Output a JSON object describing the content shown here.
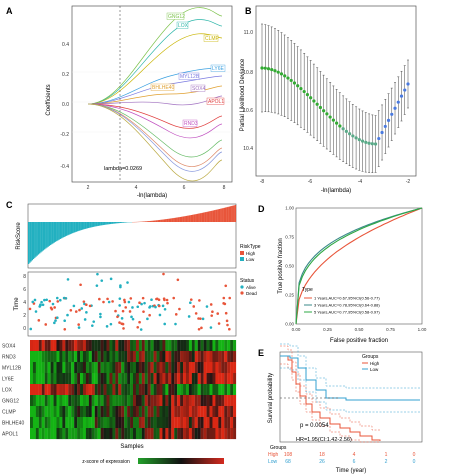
{
  "panels": {
    "A": {
      "letter": "A",
      "ylabel": "Coefficients",
      "xlabel": "-ln(lambda)",
      "annotation": "lambda=0.0269",
      "xticks": [
        "2",
        "4",
        "6",
        "8"
      ],
      "yticks": [
        "0.4",
        "0.2",
        "0.0",
        "-0.2",
        "-0.4"
      ],
      "genes": [
        {
          "name": "GNG12",
          "color": "#7cc24a"
        },
        {
          "name": "LOX",
          "color": "#2bb5a8"
        },
        {
          "name": "CLMP",
          "color": "#c8b400"
        },
        {
          "name": "LY6E",
          "color": "#3aa0e0"
        },
        {
          "name": "MYL12B",
          "color": "#7a7ae0"
        },
        {
          "name": "BHLHE40",
          "color": "#e0a030"
        },
        {
          "name": "SOX4",
          "color": "#a070c0"
        },
        {
          "name": "APOL1",
          "color": "#e04040"
        },
        {
          "name": "RND3",
          "color": "#c050c0"
        }
      ]
    },
    "B": {
      "letter": "B",
      "ylabel": "Partial Likelihood Deviance",
      "xlabel": "-ln(lambda)",
      "xticks": [
        "-8",
        "-6",
        "-4",
        "-2"
      ],
      "yticks": [
        "11.0",
        "10.8",
        "10.6",
        "10.4"
      ]
    },
    "C": {
      "letter": "C",
      "risk_ylabel": "RiskScore",
      "time_ylabel": "Time",
      "time_yticks": [
        "8",
        "6",
        "4",
        "2",
        "0"
      ],
      "risk_legend_title": "RiskType",
      "risk_legend": [
        {
          "label": "High",
          "color": "#e8553a"
        },
        {
          "label": "Low",
          "color": "#22b0c0"
        }
      ],
      "status_legend_title": "Status",
      "status_legend": [
        {
          "label": "Alive",
          "color": "#22b0c0"
        },
        {
          "label": "Dead",
          "color": "#e8553a"
        }
      ],
      "heatmap_genes": [
        "SOX4",
        "RND3",
        "MYL12B",
        "LY6E",
        "LOX",
        "GNG12",
        "CLMP",
        "BHLHE40",
        "APOL1"
      ],
      "samples_label": "Samples",
      "colorbar_label": "z-score of expression"
    },
    "D": {
      "letter": "D",
      "ylabel": "True positive fraction",
      "xlabel": "False positive fraction",
      "ticks": [
        "0.00",
        "0.25",
        "0.50",
        "0.75",
        "1.00"
      ],
      "legend_title": "Type",
      "legend": [
        {
          "label": "1 Years,AUC=0.67,95%CI(0.56-0.77)",
          "color": "#e8553a"
        },
        {
          "label": "3 Years,AUC=0.78,95%CI(0.64-0.88)",
          "color": "#3a8a8a"
        },
        {
          "label": "5 Years,AUC=0.77,95%CI(0.58-0.97)",
          "color": "#2ea844"
        }
      ]
    },
    "E": {
      "letter": "E",
      "ylabel": "Survival probability",
      "xlabel": "Time (year)",
      "legend_title": "Groups",
      "legend": [
        {
          "label": "High",
          "color": "#e8553a"
        },
        {
          "label": "Low",
          "color": "#33a0d0"
        }
      ],
      "pvalue": "p = 0.0054",
      "hr": "HR=1.95(CI:1.42-2.56)",
      "risk_table_label": "Groups",
      "risk_rows": [
        {
          "label": "High",
          "values": [
            "108",
            "18",
            "4",
            "1",
            "0"
          ],
          "color": "#e8553a"
        },
        {
          "label": "Low",
          "values": [
            "68",
            "26",
            "6",
            "2",
            "0"
          ],
          "color": "#33a0d0"
        }
      ],
      "yticks": [
        "1.00",
        "0.75",
        "0.50",
        "0.25",
        "0.00"
      ]
    }
  }
}
